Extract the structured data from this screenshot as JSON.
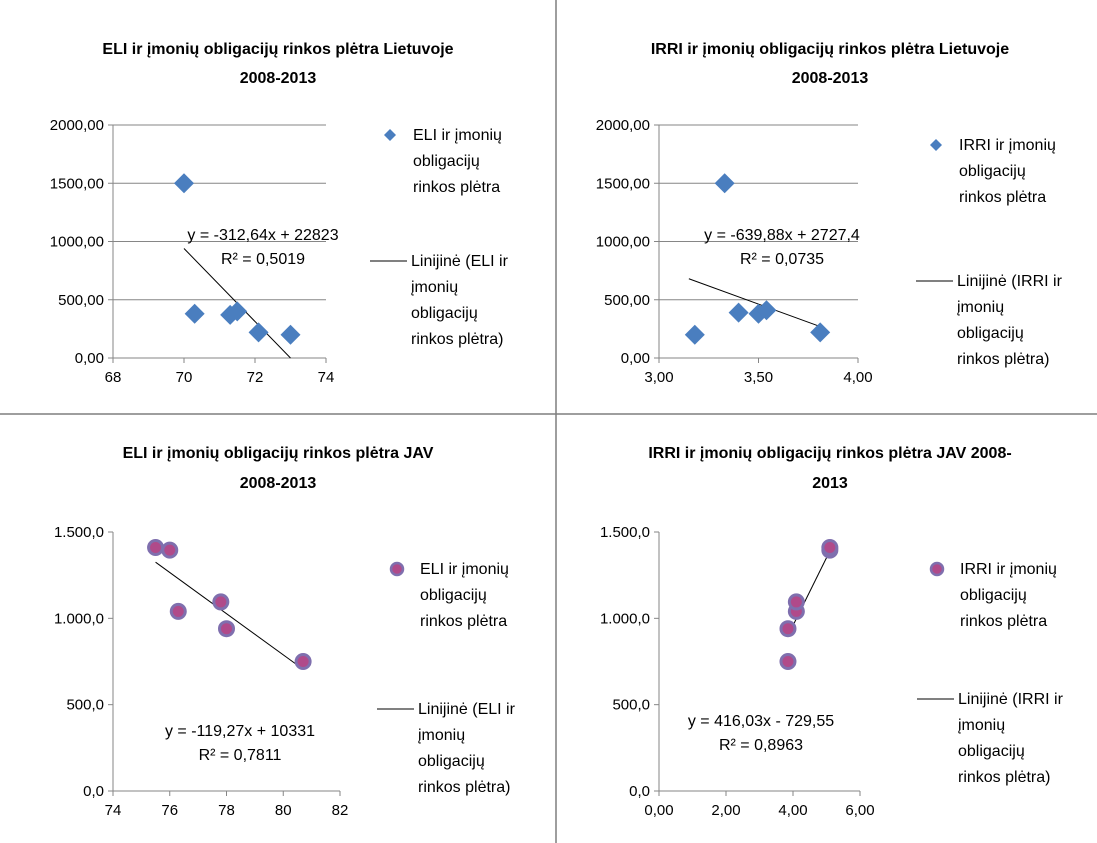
{
  "chart_data": [
    {
      "type": "scatter",
      "title": [
        "ELI ir įmonių obligacijų rinkos plėtra Lietuvoje",
        "2008-2013"
      ],
      "xlim": [
        68,
        74
      ],
      "ylim": [
        0,
        2000
      ],
      "xticks": [
        "68",
        "70",
        "72",
        "74"
      ],
      "yticks": [
        "0,00",
        "500,00",
        "1000,00",
        "1500,00",
        "2000,00"
      ],
      "grid": "horizontal",
      "marker": "diamond",
      "marker_color": "#4a7ebf",
      "points": [
        {
          "x": 70.0,
          "y": 1500
        },
        {
          "x": 70.3,
          "y": 380
        },
        {
          "x": 71.3,
          "y": 370
        },
        {
          "x": 71.5,
          "y": 400
        },
        {
          "x": 72.1,
          "y": 220
        },
        {
          "x": 73.0,
          "y": 200
        }
      ],
      "trend": {
        "x1": 70.0,
        "y1": 940,
        "x2": 73.0,
        "y2": 0
      },
      "equation": [
        "y = -312,64x + 22823",
        "R² = 0,5019"
      ],
      "legend": {
        "series": [
          "ELI ir įmonių",
          "obligacijų",
          "rinkos plėtra"
        ],
        "trendline": [
          "Linijinė (ELI ir",
          "įmonių",
          "obligacijų",
          "rinkos plėtra)"
        ]
      }
    },
    {
      "type": "scatter",
      "title": [
        "IRRI ir įmonių obligacijų rinkos plėtra Lietuvoje",
        "2008-2013"
      ],
      "xlim": [
        3.0,
        4.0
      ],
      "ylim": [
        0,
        2000
      ],
      "xticks": [
        "3,00",
        "3,50",
        "4,00"
      ],
      "yticks": [
        "0,00",
        "500,00",
        "1000,00",
        "1500,00",
        "2000,00"
      ],
      "grid": "horizontal",
      "marker": "diamond",
      "marker_color": "#4a7ebf",
      "points": [
        {
          "x": 3.18,
          "y": 200
        },
        {
          "x": 3.33,
          "y": 1500
        },
        {
          "x": 3.4,
          "y": 390
        },
        {
          "x": 3.5,
          "y": 380
        },
        {
          "x": 3.54,
          "y": 410
        },
        {
          "x": 3.81,
          "y": 220
        }
      ],
      "trend": {
        "x1": 3.15,
        "y1": 680,
        "x2": 3.81,
        "y2": 270
      },
      "equation": [
        "y = -639,88x + 2727,4",
        "R² = 0,0735"
      ],
      "legend": {
        "series": [
          "IRRI ir įmonių",
          "obligacijų",
          "rinkos plėtra"
        ],
        "trendline": [
          "Linijinė (IRRI ir",
          "įmonių",
          "obligacijų",
          "rinkos plėtra)"
        ]
      }
    },
    {
      "type": "scatter",
      "title": [
        "ELI ir įmonių obligacijų rinkos plėtra JAV",
        "2008-2013"
      ],
      "xlim": [
        74,
        82
      ],
      "ylim": [
        0,
        1500
      ],
      "xticks": [
        "74",
        "76",
        "78",
        "80",
        "82"
      ],
      "yticks": [
        "0,0",
        "500,0",
        "1.000,0",
        "1.500,0"
      ],
      "grid": "none",
      "marker": "circle",
      "marker_color": "#7f6fae",
      "points": [
        {
          "x": 75.5,
          "y": 1410
        },
        {
          "x": 76.0,
          "y": 1395
        },
        {
          "x": 76.3,
          "y": 1040
        },
        {
          "x": 77.8,
          "y": 1095
        },
        {
          "x": 78.0,
          "y": 940
        },
        {
          "x": 80.7,
          "y": 750
        }
      ],
      "trend": {
        "x1": 75.5,
        "y1": 1325,
        "x2": 80.7,
        "y2": 705
      },
      "equation": [
        "y = -119,27x + 10331",
        "R² = 0,7811"
      ],
      "legend": {
        "series": [
          "ELI ir įmonių",
          "obligacijų",
          "rinkos plėtra"
        ],
        "trendline": [
          "Linijinė (ELI ir",
          "įmonių",
          "obligacijų",
          "rinkos plėtra)"
        ]
      }
    },
    {
      "type": "scatter",
      "title": [
        "IRRI ir įmonių obligacijų rinkos plėtra JAV 2008-",
        "2013"
      ],
      "xlim": [
        0,
        6
      ],
      "ylim": [
        0,
        1500
      ],
      "xticks": [
        "0,00",
        "2,00",
        "4,00",
        "6,00"
      ],
      "yticks": [
        "0,0",
        "500,0",
        "1.000,0",
        "1.500,0"
      ],
      "grid": "none",
      "marker": "circle",
      "marker_color": "#7f6fae",
      "points": [
        {
          "x": 3.85,
          "y": 750
        },
        {
          "x": 3.85,
          "y": 940
        },
        {
          "x": 4.1,
          "y": 1040
        },
        {
          "x": 4.1,
          "y": 1095
        },
        {
          "x": 5.1,
          "y": 1395
        },
        {
          "x": 5.1,
          "y": 1410
        }
      ],
      "trend": {
        "x1": 3.85,
        "y1": 900,
        "x2": 5.1,
        "y2": 1390
      },
      "equation": [
        "y = 416,03x - 729,55",
        "R² = 0,8963"
      ],
      "legend": {
        "series": [
          "IRRI ir įmonių",
          "obligacijų",
          "rinkos plėtra"
        ],
        "trendline": [
          "Linijinė (IRRI ir",
          "įmonių",
          "obligacijų",
          "rinkos plėtra)"
        ]
      }
    }
  ]
}
